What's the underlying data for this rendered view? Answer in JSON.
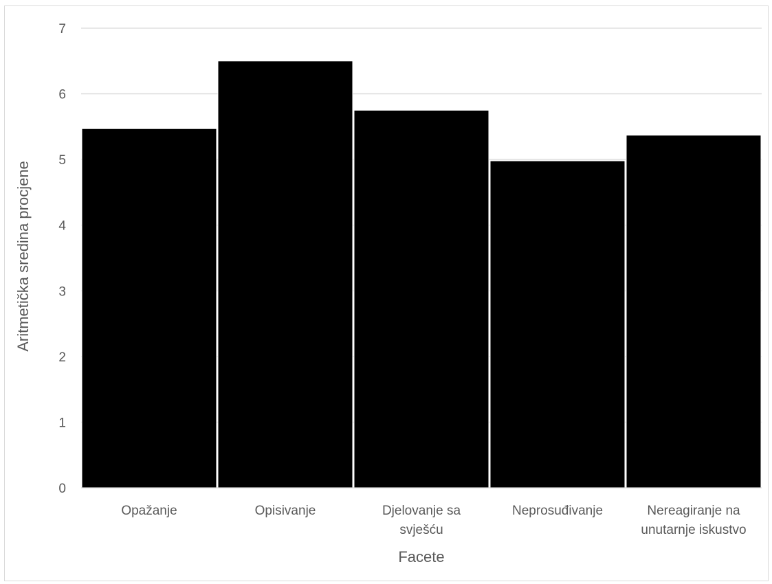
{
  "chart_data": {
    "type": "bar",
    "title": "",
    "xlabel": "Facete",
    "ylabel": "Aritmetička sredina procjene",
    "categories": [
      "Opažanje",
      "Opisivanje",
      "Djelovanje sa svješću",
      "Neprosuđivanje",
      "Nereagiranje na unutarnje iskustvo"
    ],
    "category_lines": [
      [
        "Opažanje"
      ],
      [
        "Opisivanje"
      ],
      [
        "Djelovanje sa",
        "svješću"
      ],
      [
        "Neprosuđivanje"
      ],
      [
        "Nereagiranje na",
        "unutarnje iskustvo"
      ]
    ],
    "values": [
      5.47,
      6.5,
      5.75,
      4.98,
      5.37
    ],
    "ylim": [
      0,
      7
    ],
    "yticks": [
      "0",
      "1",
      "2",
      "3",
      "4",
      "5",
      "6",
      "7"
    ],
    "grid": true,
    "legend": "none",
    "bar_color": "#000000",
    "grid_color": "#d9d9d9",
    "text_color": "#595959"
  }
}
